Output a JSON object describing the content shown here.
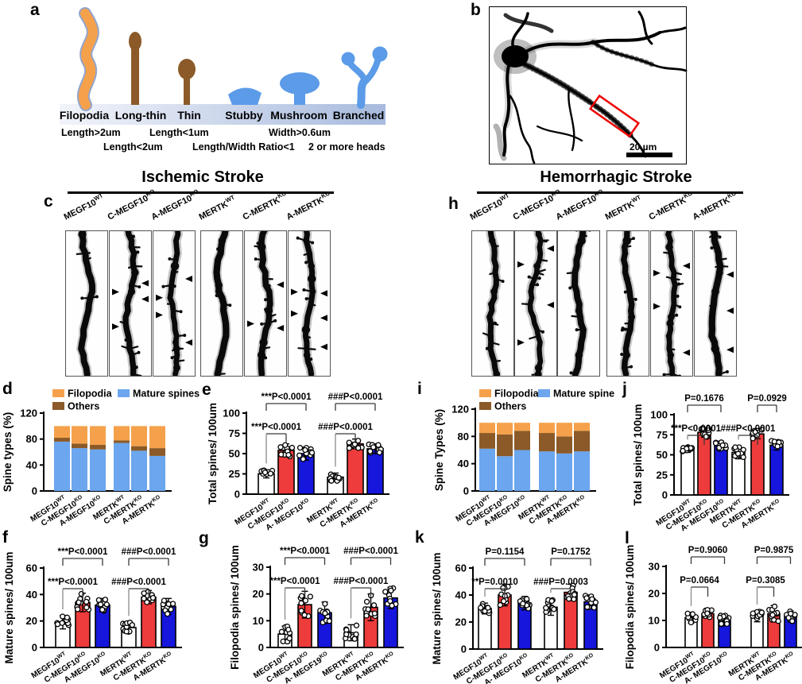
{
  "letters": {
    "a": "a",
    "b": "b",
    "c": "c",
    "d": "d",
    "e": "e",
    "f": "f",
    "g": "g",
    "h": "h",
    "i": "i",
    "j": "j",
    "k": "k",
    "l": "l"
  },
  "colors": {
    "bar_red": "#EE3B3B",
    "bar_blue": "#1616DD",
    "stack_blue": "#6BA6EE",
    "orange": "#F5A14B",
    "brown": "#8B5A28"
  },
  "panel_a": {
    "types": [
      {
        "name": "Filopodia",
        "criterion": "Length>2um",
        "color": "#F5A14B"
      },
      {
        "name": "Long-thin",
        "criterion": "Length<2um",
        "color": "#8B5A28"
      },
      {
        "name": "Thin",
        "criterion": "Length<1um",
        "color": "#8B5A28"
      },
      {
        "name": "Stubby",
        "criterion": "Length/Width Ratio<1",
        "color": "#5B9BE8"
      },
      {
        "name": "Mushroom",
        "criterion": "Width>0.6um",
        "color": "#5B9BE8"
      },
      {
        "name": "Branched",
        "criterion": "2 or more heads",
        "color": "#5B9BE8"
      }
    ],
    "criteria_row1": [
      "Length>2um",
      "Length<1um",
      "Width>0.6um"
    ],
    "criteria_row2": [
      "Length<2um",
      "Length/Width Ratio<1",
      "2 or more heads"
    ]
  },
  "panel_b": {
    "scale_bar_label": "20 µm"
  },
  "panel_c": {
    "title": "Ischemic Stroke",
    "genotypes": [
      {
        "base": "MEGF10",
        "sup": "WT"
      },
      {
        "base": "C-MEGF10",
        "sup": "KO"
      },
      {
        "base": "A-MEGF10",
        "sup": "KO"
      },
      {
        "base": "MERTK",
        "sup": "WT"
      },
      {
        "base": "C-MERTK",
        "sup": "KO"
      },
      {
        "base": "A-MERTK",
        "sup": "KO"
      }
    ],
    "strips": [
      {
        "spines": 5,
        "arrows": []
      },
      {
        "spines": 13,
        "arrows": [
          {
            "y": 0.36,
            "side": "right"
          },
          {
            "y": 0.42,
            "side": "left"
          },
          {
            "y": 0.47,
            "side": "right"
          },
          {
            "y": 0.66,
            "side": "left"
          }
        ]
      },
      {
        "spines": 11,
        "arrows": [
          {
            "y": 0.33,
            "side": "right"
          },
          {
            "y": 0.46,
            "side": "left"
          },
          {
            "y": 0.58,
            "side": "left"
          },
          {
            "y": 0.77,
            "side": "right"
          }
        ]
      },
      {
        "spines": 4,
        "arrows": []
      },
      {
        "spines": 13,
        "arrows": [
          {
            "y": 0.37,
            "side": "right"
          },
          {
            "y": 0.64,
            "side": "left"
          },
          {
            "y": 0.67,
            "side": "right"
          }
        ]
      },
      {
        "spines": 12,
        "arrows": [
          {
            "y": 0.42,
            "side": "left"
          },
          {
            "y": 0.43,
            "side": "right"
          },
          {
            "y": 0.57,
            "side": "left"
          },
          {
            "y": 0.6,
            "side": "right"
          },
          {
            "y": 0.8,
            "side": "right"
          }
        ]
      }
    ]
  },
  "panel_h": {
    "title": "Hemorrhagic Stroke",
    "genotypes": [
      {
        "base": "MEGF10",
        "sup": "WT"
      },
      {
        "base": "C-MEGF10",
        "sup": "KO"
      },
      {
        "base": "A-MEGF10",
        "sup": "KO"
      },
      {
        "base": "MERTK",
        "sup": "WT"
      },
      {
        "base": "C-MERTK",
        "sup": "KO"
      },
      {
        "base": "A-MERTK",
        "sup": "KO"
      }
    ],
    "strips": [
      {
        "spines": 9,
        "arrows": []
      },
      {
        "spines": 12,
        "arrows": [
          {
            "y": 0.12,
            "side": "right"
          },
          {
            "y": 0.23,
            "side": "left"
          },
          {
            "y": 0.51,
            "side": "right"
          },
          {
            "y": 0.77,
            "side": "left"
          }
        ]
      },
      {
        "spines": 8,
        "arrows": []
      },
      {
        "spines": 9,
        "arrows": []
      },
      {
        "spines": 13,
        "arrows": [
          {
            "y": 0.24,
            "side": "right"
          },
          {
            "y": 0.29,
            "side": "left"
          },
          {
            "y": 0.52,
            "side": "left"
          },
          {
            "y": 0.84,
            "side": "right"
          }
        ]
      },
      {
        "spines": 9,
        "arrows": [
          {
            "y": 0.3,
            "side": "right"
          },
          {
            "y": 0.55,
            "side": "right"
          },
          {
            "y": 0.82,
            "side": "right"
          }
        ]
      }
    ]
  },
  "chart_data": [
    {
      "id": "d",
      "type": "stacked-bar",
      "ylabel": "Spine types (%)",
      "ylim": [
        0,
        120
      ],
      "yticks": [
        0,
        40,
        80,
        120
      ],
      "legend_rows": [
        [
          {
            "label": "Filopodia",
            "color": "#F5A14B"
          },
          {
            "label": "Mature spines",
            "color": "#6BA6EE"
          }
        ],
        [
          {
            "label": "Others",
            "color": "#8B5A28"
          }
        ]
      ],
      "categories": [
        {
          "base": "MEGF10",
          "sup": "WT"
        },
        {
          "base": "C-MEGF10",
          "sup": "KO"
        },
        {
          "base": "A-MEGF10",
          "sup": "KO"
        },
        {
          "base": "MERTK",
          "sup": "WT"
        },
        {
          "base": "C-MERTK",
          "sup": "KO"
        },
        {
          "base": "A-MERTK",
          "sup": "KO"
        }
      ],
      "series": [
        {
          "name": "Mature spines",
          "color": "#6BA6EE",
          "values": [
            76,
            66,
            64,
            74,
            62,
            54
          ]
        },
        {
          "name": "Others",
          "color": "#8B5A28",
          "values": [
            6,
            7,
            7,
            4,
            7,
            12
          ]
        },
        {
          "name": "Filopodia",
          "color": "#F5A14B",
          "values": [
            18,
            27,
            29,
            22,
            31,
            34
          ]
        }
      ]
    },
    {
      "id": "e",
      "type": "bar",
      "ylabel": "Total spines/ 100um",
      "ylim": [
        0,
        100
      ],
      "yticks": [
        0,
        25,
        50,
        75,
        100
      ],
      "categories": [
        {
          "base": "MEGF10",
          "sup": "WT"
        },
        {
          "base": "C-MEGF10",
          "sup": "KO"
        },
        {
          "base": "A- MEGF10",
          "sup": "KO"
        },
        {
          "base": "MERTK",
          "sup": "WT"
        },
        {
          "base": "C-MERTK",
          "sup": "KO"
        },
        {
          "base": "A-MERTK",
          "sup": "KO"
        }
      ],
      "values": [
        25,
        54,
        50,
        21,
        62,
        56
      ],
      "errors": [
        5,
        8,
        8,
        5,
        6,
        6
      ],
      "bar_colors": [
        "#FFFFFF",
        "#EE3B3B",
        "#1616DD",
        "#FFFFFF",
        "#EE3B3B",
        "#1616DD"
      ],
      "annotations": [
        {
          "text": "***P<0.0001",
          "from": 0,
          "to": 1,
          "level": 1
        },
        {
          "text": "***P<0.0001",
          "from": 0,
          "to": 2,
          "level": 2
        },
        {
          "text": "###P<0.0001",
          "from": 3,
          "to": 4,
          "level": 1
        },
        {
          "text": "###P<0.0001",
          "from": 3,
          "to": 5,
          "level": 2
        }
      ]
    },
    {
      "id": "f",
      "type": "bar",
      "ylabel": "Mature spines/ 100um",
      "ylim": [
        0,
        60
      ],
      "yticks": [
        0,
        20,
        40,
        60
      ],
      "categories": [
        {
          "base": "MEGF10",
          "sup": "WT"
        },
        {
          "base": "C-MEGF10",
          "sup": "KO"
        },
        {
          "base": "A-MEGF10",
          "sup": "KO"
        },
        {
          "base": "MERTK",
          "sup": "WT"
        },
        {
          "base": "C-MERTK",
          "sup": "KO"
        },
        {
          "base": "A-MERTK",
          "sup": "KO"
        }
      ],
      "values": [
        19,
        34,
        32,
        15,
        38,
        31
      ],
      "errors": [
        5,
        7,
        5,
        4,
        5,
        6
      ],
      "bar_colors": [
        "#FFFFFF",
        "#EE3B3B",
        "#1616DD",
        "#FFFFFF",
        "#EE3B3B",
        "#1616DD"
      ],
      "annotations": [
        {
          "text": "***P<0.0001",
          "from": 0,
          "to": 1,
          "level": 1
        },
        {
          "text": "***P<0.0001",
          "from": 0,
          "to": 2,
          "level": 2
        },
        {
          "text": "###P<0.0001",
          "from": 3,
          "to": 4,
          "level": 1
        },
        {
          "text": "###P<0.0001",
          "from": 3,
          "to": 5,
          "level": 2
        }
      ]
    },
    {
      "id": "g",
      "type": "bar",
      "ylabel": "Filopodia spines/ 100um",
      "ylim": [
        0,
        30
      ],
      "yticks": [
        0,
        10,
        20,
        30
      ],
      "categories": [
        {
          "base": "MEGF10",
          "sup": "WT"
        },
        {
          "base": "C-MEGF10",
          "sup": "KO"
        },
        {
          "base": "A- MEGF19",
          "sup": "KO"
        },
        {
          "base": "MERTK",
          "sup": "WT"
        },
        {
          "base": "C-MERTK",
          "sup": "KO"
        },
        {
          "base": "A-MERTK",
          "sup": "KO"
        }
      ],
      "values": [
        5,
        16,
        13,
        5.5,
        15,
        18.5
      ],
      "errors": [
        3,
        5,
        4,
        3,
        5,
        4
      ],
      "bar_colors": [
        "#FFFFFF",
        "#EE3B3B",
        "#1616DD",
        "#FFFFFF",
        "#EE3B3B",
        "#1616DD"
      ],
      "annotations": [
        {
          "text": "***P<0.0001",
          "from": 0,
          "to": 1,
          "level": 1
        },
        {
          "text": "***P<0.0001",
          "from": 0,
          "to": 2,
          "level": 2
        },
        {
          "text": "###P<0.0001",
          "from": 3,
          "to": 4,
          "level": 1
        },
        {
          "text": "###P<0.0001",
          "from": 3,
          "to": 5,
          "level": 2
        }
      ]
    },
    {
      "id": "i",
      "type": "stacked-bar",
      "ylabel": "Spine Types (%)",
      "ylim": [
        0,
        120
      ],
      "yticks": [
        0,
        40,
        80,
        120
      ],
      "legend_rows": [
        [
          {
            "label": "Filopodia",
            "color": "#F5A14B"
          },
          {
            "label": "Mature spine",
            "color": "#6BA6EE"
          }
        ],
        [
          {
            "label": "Others",
            "color": "#8B5A28"
          }
        ]
      ],
      "categories": [
        {
          "base": "MEGF10",
          "sup": "WT"
        },
        {
          "base": "C-MEGF10",
          "sup": "KO"
        },
        {
          "base": "A-MEGF10",
          "sup": "KO"
        },
        {
          "base": "MERTK",
          "sup": "WT"
        },
        {
          "base": "C-MERTK",
          "sup": "KO"
        },
        {
          "base": "A-MERTK",
          "sup": "KO"
        }
      ],
      "series": [
        {
          "name": "Mature spine",
          "color": "#6BA6EE",
          "values": [
            62,
            51,
            60,
            58,
            55,
            58
          ]
        },
        {
          "name": "Others",
          "color": "#8B5A28",
          "values": [
            23,
            32,
            28,
            27,
            25,
            30
          ]
        },
        {
          "name": "Filopodia",
          "color": "#F5A14B",
          "values": [
            15,
            17,
            12,
            15,
            20,
            12
          ]
        }
      ]
    },
    {
      "id": "j",
      "type": "bar",
      "ylabel": "Total spines/ 100um",
      "ylim": [
        0,
        100
      ],
      "yticks": [
        0,
        25,
        50,
        75,
        100
      ],
      "categories": [
        {
          "base": "MEGF10",
          "sup": "WT"
        },
        {
          "base": "C-MEGF10",
          "sup": "KO"
        },
        {
          "base": "A- MEGF10",
          "sup": "KO"
        },
        {
          "base": "MERTK",
          "sup": "WT"
        },
        {
          "base": "C-MERTK",
          "sup": "KO"
        },
        {
          "base": "A-MERTK",
          "sup": "KO"
        }
      ],
      "values": [
        57,
        78,
        62,
        53,
        76,
        62
      ],
      "errors": [
        4,
        6,
        5,
        8,
        6,
        6
      ],
      "bar_colors": [
        "#FFFFFF",
        "#EE3B3B",
        "#1616DD",
        "#FFFFFF",
        "#EE3B3B",
        "#1616DD"
      ],
      "annotations": [
        {
          "text": "***P<0.0001",
          "from": 0,
          "to": 1,
          "level": 1
        },
        {
          "text": "P=0.1676",
          "from": 0,
          "to": 2,
          "level": 2
        },
        {
          "text": "###P<0.0001",
          "from": 3,
          "to": 4,
          "level": 1
        },
        {
          "text": "P=0.0929",
          "from": 4,
          "to": 5,
          "level": 2
        }
      ]
    },
    {
      "id": "k",
      "type": "bar",
      "ylabel": "Mature spines/ 100um",
      "ylim": [
        0,
        60
      ],
      "yticks": [
        0,
        20,
        40,
        60
      ],
      "categories": [
        {
          "base": "MEGF10",
          "sup": "WT"
        },
        {
          "base": "C-MEGF10",
          "sup": "KO"
        },
        {
          "base": "A- MEGF10",
          "sup": "KO"
        },
        {
          "base": "MERTK",
          "sup": "WT"
        },
        {
          "base": "C-MERTK",
          "sup": "KO"
        },
        {
          "base": "A-MERTK",
          "sup": "KO"
        }
      ],
      "values": [
        30,
        40,
        34,
        31,
        42,
        35
      ],
      "errors": [
        4,
        8,
        5,
        6,
        6,
        5
      ],
      "bar_colors": [
        "#FFFFFF",
        "#EE3B3B",
        "#1616DD",
        "#FFFFFF",
        "#EE3B3B",
        "#1616DD"
      ],
      "annotations": [
        {
          "text": "**P=0.0010",
          "from": 0,
          "to": 1,
          "level": 1
        },
        {
          "text": "P=0.1154",
          "from": 0,
          "to": 2,
          "level": 2
        },
        {
          "text": "###P=0.0003",
          "from": 3,
          "to": 4,
          "level": 1
        },
        {
          "text": "P=0.1752",
          "from": 3,
          "to": 5,
          "level": 2
        }
      ]
    },
    {
      "id": "l",
      "type": "bar",
      "ylabel": "Filopodia spines/ 100um",
      "ylim": [
        0,
        30
      ],
      "yticks": [
        0,
        10,
        20,
        30
      ],
      "categories": [
        {
          "base": "MEGF10",
          "sup": "WT"
        },
        {
          "base": "C-MEGF10",
          "sup": "KO"
        },
        {
          "base": "A- MEGF10",
          "sup": "KO"
        },
        {
          "base": "MERTK",
          "sup": "WT"
        },
        {
          "base": "C-MERTK",
          "sup": "KO"
        },
        {
          "base": "A-MERTK",
          "sup": "KO"
        }
      ],
      "values": [
        11,
        12.5,
        10,
        11.5,
        12.5,
        11.5
      ],
      "errors": [
        2,
        1.5,
        2,
        2,
        3,
        2
      ],
      "bar_colors": [
        "#FFFFFF",
        "#EE3B3B",
        "#1616DD",
        "#FFFFFF",
        "#EE3B3B",
        "#1616DD"
      ],
      "annotations": [
        {
          "text": "P=0.0664",
          "from": 0,
          "to": 1,
          "level": 1
        },
        {
          "text": "P=0.9060",
          "from": 0,
          "to": 2,
          "level": 2
        },
        {
          "text": "P=0.3085",
          "from": 3,
          "to": 4,
          "level": 1
        },
        {
          "text": "P=0.9875",
          "from": 3,
          "to": 5,
          "level": 2
        }
      ]
    }
  ]
}
